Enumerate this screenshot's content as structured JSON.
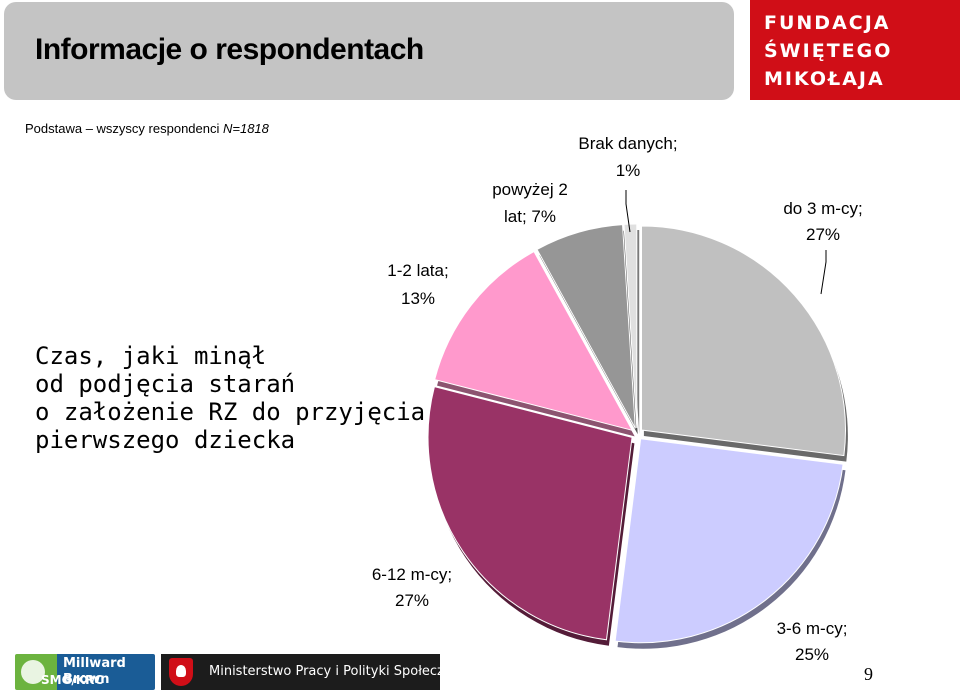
{
  "header": {
    "title": "Informacje o respondentach"
  },
  "logo": {
    "lines": [
      "FUNDACJA",
      "ŚWIĘTEGO",
      "MIKOŁAJA"
    ],
    "color": "#d00e17"
  },
  "subline": {
    "text": "Podstawa – wszyscy respondenci ",
    "n": "N=1818"
  },
  "question": {
    "text": "Czas, jaki minął\nod podjęcia starań\no założenie RZ do przyjęcia\npierwszego dziecka"
  },
  "chart_data": {
    "type": "pie",
    "title": "",
    "slices": [
      {
        "name": "do 3 m-cy",
        "value": 27,
        "label_line1": "do 3 m-cy;",
        "label_line2": "27%",
        "color": "#c0c0c0"
      },
      {
        "name": "3-6 m-cy",
        "value": 25,
        "label_line1": "3-6 m-cy;",
        "label_line2": "25%",
        "color": "#ccccff"
      },
      {
        "name": "6-12 m-cy",
        "value": 27,
        "label_line1": "6-12 m-cy;",
        "label_line2": "27%",
        "color": "#993366"
      },
      {
        "name": "1-2 lata",
        "value": 13,
        "label_line1": "1-2 lata;",
        "label_line2": "13%",
        "color": "#ff99cc"
      },
      {
        "name": "powyżej 2 lat",
        "value": 7,
        "label_line1": "powyżej 2",
        "label_line2": "lat; 7%",
        "color": "#969696"
      },
      {
        "name": "Brak danych",
        "value": 1,
        "label_line1": "Brak danych;",
        "label_line2": "1%",
        "color": "#e0e0e0"
      }
    ],
    "legend": "none",
    "exploded": true
  },
  "footer": {
    "millward_line1": "Millward Brown",
    "millward_line2": "SMG/KRC",
    "ministry": "Ministerstwo Pracy i Polityki Społecznej",
    "page_number": "9"
  }
}
